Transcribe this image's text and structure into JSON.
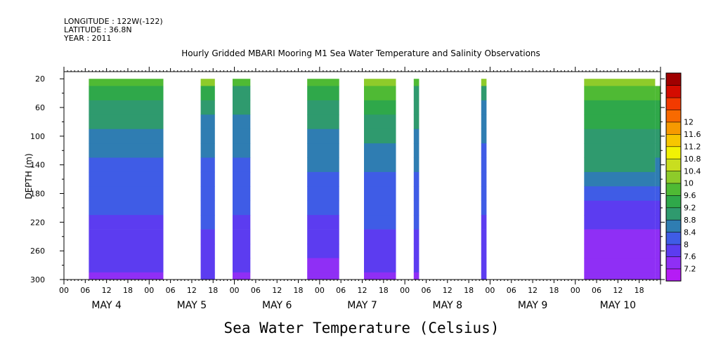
{
  "header": {
    "lines": [
      "LONGITUDE : 122W(-122)",
      "LATITUDE : 36.8N",
      "YEAR : 2011"
    ],
    "title": "Hourly Gridded MBARI Mooring M1 Sea Water Temperature and Salinity Observations"
  },
  "footer_label": "Sea Water Temperature (Celsius)",
  "colors": {
    "levels": [
      7.2,
      7.6,
      8,
      8.4,
      8.8,
      9.2,
      9.6,
      10,
      10.4,
      10.8,
      11.2,
      11.6,
      12
    ],
    "palette": [
      "#b51cf5",
      "#8f2ff5",
      "#5c3cf0",
      "#3f5ce6",
      "#2f7db2",
      "#2f9a6e",
      "#2fa84a",
      "#4fba34",
      "#8ecb2a",
      "#c9de1f",
      "#f2f204",
      "#f7c600",
      "#f79a00",
      "#f86a00",
      "#f23a00",
      "#d40c00",
      "#a00000"
    ]
  },
  "chart_data": {
    "type": "heatmap",
    "title": "Hourly Gridded MBARI Mooring M1 Sea Water Temperature and Salinity Observations",
    "xlabel": "",
    "ylabel": "DEPTH (m)",
    "x_unit": "hours since 2011-05-04 00:00",
    "xlim": [
      0,
      168
    ],
    "ylim": [
      300,
      10
    ],
    "y_ticks": [
      20,
      60,
      100,
      140,
      180,
      220,
      260,
      300
    ],
    "x_tick_labels": [
      "00",
      "06",
      "12",
      "18",
      "00",
      "06",
      "12",
      "18",
      "00",
      "06",
      "12",
      "18",
      "00",
      "06",
      "12",
      "18",
      "00",
      "06",
      "12",
      "18",
      "00",
      "06",
      "12",
      "18",
      "00",
      "06",
      "12",
      "18"
    ],
    "day_labels": [
      "MAY  4",
      "MAY  5",
      "MAY  6",
      "MAY  7",
      "MAY  8",
      "MAY  9",
      "MAY 10"
    ],
    "colorbar_ticks": [
      "12",
      "11.6",
      "11.2",
      "10.8",
      "10.4",
      "10",
      "9.6",
      "9.2",
      "8.8",
      "8.4",
      "8",
      "7.6",
      "7.2"
    ],
    "depths": [
      20,
      40,
      60,
      80,
      100,
      120,
      140,
      160,
      180,
      200,
      220,
      240,
      260,
      280,
      300
    ],
    "segments": [
      {
        "start": 7,
        "end": 28,
        "profile": [
          9.9,
          9.3,
          9.0,
          8.8,
          8.6,
          8.4,
          8.3,
          8.2,
          8.1,
          8.0,
          7.9,
          7.9,
          7.8,
          7.7,
          7.5
        ]
      },
      {
        "start": 38.5,
        "end": 42.5,
        "profile": [
          10.0,
          9.2,
          8.9,
          8.7,
          8.5,
          8.4,
          8.3,
          8.2,
          8.1,
          8.0,
          8.0,
          7.9,
          7.9,
          7.8,
          7.6
        ]
      },
      {
        "start": 47.5,
        "end": 52.5,
        "profile": [
          9.8,
          9.1,
          8.9,
          8.7,
          8.5,
          8.4,
          8.3,
          8.2,
          8.1,
          8.0,
          7.9,
          7.9,
          7.8,
          7.7,
          7.5
        ]
      },
      {
        "start": 68.5,
        "end": 77.5,
        "profile": [
          9.7,
          9.2,
          9.0,
          8.8,
          8.6,
          8.5,
          8.4,
          8.3,
          8.1,
          8.0,
          7.9,
          7.9,
          7.8,
          7.5,
          7.3
        ]
      },
      {
        "start": 84.5,
        "end": 93.5,
        "profile": [
          10.3,
          9.8,
          9.4,
          9.1,
          8.9,
          8.7,
          8.5,
          8.3,
          8.2,
          8.1,
          8.0,
          7.9,
          7.8,
          7.7,
          7.5
        ]
      },
      {
        "start": 98.5,
        "end": 100,
        "profile": [
          9.8,
          9.1,
          9.0,
          8.8,
          8.6,
          8.5,
          8.4,
          8.3,
          8.2,
          8.1,
          8.0,
          7.9,
          7.9,
          7.8,
          7.5
        ]
      },
      {
        "start": 117.5,
        "end": 119,
        "profile": [
          10.2,
          9.1,
          8.7,
          8.5,
          8.4,
          8.3,
          8.2,
          8.1,
          8.0,
          8.0,
          7.9,
          7.9,
          7.8,
          7.7,
          7.6
        ]
      },
      {
        "start": 146.5,
        "end": 166.5,
        "profile": [
          10.2,
          9.8,
          9.5,
          9.3,
          9.1,
          8.9,
          8.8,
          8.5,
          8.1,
          7.9,
          7.7,
          7.4,
          7.3,
          7.2,
          7.2
        ]
      },
      {
        "start": 166.5,
        "end": 168,
        "profile": [
          null,
          9.6,
          9.4,
          9.2,
          9.0,
          8.9,
          8.7,
          8.4,
          8.1,
          7.9,
          7.7,
          7.4,
          7.3,
          7.2,
          7.2
        ]
      }
    ]
  }
}
